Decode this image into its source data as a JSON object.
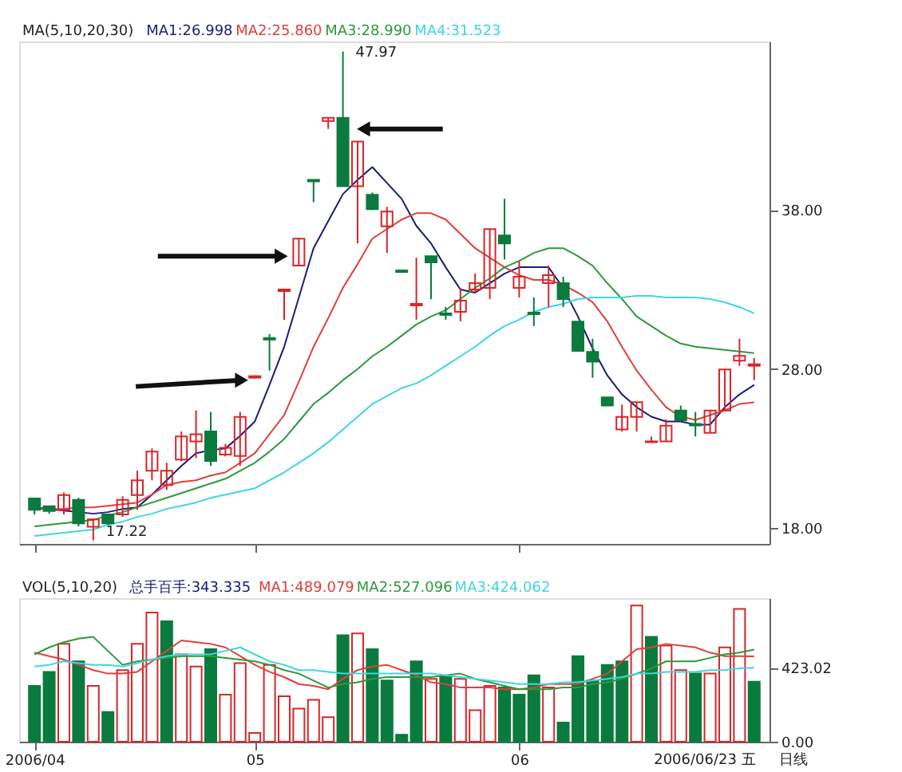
{
  "chart_data": [
    {
      "type": "candlestick",
      "legend": "top left",
      "tick_labels": "y",
      "annotations": [
        "MA(5,10,20,30)",
        "47.97",
        "17.22"
      ],
      "categories": [
        "2006/04",
        null,
        null,
        null,
        null,
        null,
        null,
        null,
        null,
        null,
        null,
        null,
        null,
        null,
        null,
        "05",
        null,
        null,
        null,
        null,
        null,
        null,
        null,
        null,
        null,
        null,
        null,
        null,
        null,
        null,
        null,
        null,
        null,
        "06",
        null,
        null,
        null,
        null,
        null,
        null,
        null,
        null,
        null,
        null,
        null,
        null,
        null,
        null,
        null,
        null
      ],
      "ohlc": [
        [
          19.86,
          19.9,
          18.85,
          19.15
        ],
        [
          19.37,
          19.4,
          18.9,
          19.07
        ],
        [
          19.15,
          20.23,
          18.85,
          20.07
        ],
        [
          19.77,
          19.9,
          18.1,
          18.29
        ],
        [
          18.08,
          18.6,
          17.22,
          18.54
        ],
        [
          18.85,
          18.9,
          18.2,
          18.29
        ],
        [
          18.85,
          20.0,
          18.7,
          19.77
        ],
        [
          20.07,
          21.6,
          19.15,
          21.0
        ],
        [
          21.6,
          23.0,
          21.0,
          22.8
        ],
        [
          20.7,
          22.1,
          20.4,
          21.6
        ],
        [
          22.3,
          24.07,
          22.2,
          23.76
        ],
        [
          23.45,
          25.4,
          22.4,
          23.9
        ],
        [
          24.07,
          25.3,
          21.9,
          22.22
        ],
        [
          22.62,
          23.3,
          22.5,
          23.05
        ],
        [
          22.53,
          25.3,
          21.9,
          24.99
        ],
        [
          27.45,
          27.6,
          27.4,
          27.55
        ],
        [
          29.95,
          30.2,
          27.9,
          29.85
        ],
        [
          32.9,
          33.0,
          31.1,
          33.0
        ],
        [
          34.5,
          36.2,
          34.5,
          36.2
        ],
        [
          39.9,
          39.9,
          38.5,
          39.8
        ],
        [
          43.6,
          43.8,
          43.1,
          43.8
        ],
        [
          43.8,
          47.97,
          39.5,
          39.5
        ],
        [
          39.5,
          42.3,
          35.9,
          42.3
        ],
        [
          38.96,
          39.1,
          38.0,
          38.05
        ],
        [
          36.97,
          38.2,
          35.3,
          37.9
        ],
        [
          34.2,
          34.2,
          34.1,
          34.1
        ],
        [
          32.0,
          35.0,
          31.1,
          32.1
        ],
        [
          35.1,
          35.1,
          32.4,
          34.7
        ],
        [
          31.5,
          31.9,
          31.1,
          31.4
        ],
        [
          31.6,
          33.1,
          31.0,
          32.3
        ],
        [
          33.0,
          34.0,
          32.8,
          33.4
        ],
        [
          33.1,
          36.8,
          32.4,
          36.8
        ],
        [
          36.4,
          38.7,
          34.9,
          35.9
        ],
        [
          33.1,
          34.8,
          32.5,
          33.8
        ],
        [
          31.55,
          32.5,
          30.7,
          31.45
        ],
        [
          33.4,
          34.5,
          31.9,
          33.9
        ],
        [
          33.4,
          33.8,
          31.9,
          32.4
        ],
        [
          30.98,
          30.98,
          29.14,
          29.14
        ],
        [
          29.08,
          29.9,
          27.45,
          28.46
        ],
        [
          26.22,
          26.22,
          25.7,
          25.7
        ],
        [
          24.2,
          25.76,
          24.07,
          24.99
        ],
        [
          24.99,
          25.91,
          24.07,
          25.91
        ],
        [
          23.4,
          23.76,
          23.4,
          23.45
        ],
        [
          23.45,
          24.84,
          23.45,
          24.44
        ],
        [
          25.39,
          25.7,
          24.77,
          24.77
        ],
        [
          24.55,
          25.3,
          23.76,
          24.45
        ],
        [
          23.98,
          25.39,
          23.98,
          25.39
        ],
        [
          25.39,
          27.97,
          25.39,
          27.97
        ],
        [
          28.52,
          29.9,
          28.2,
          28.83
        ],
        [
          28.2,
          28.7,
          27.3,
          28.3
        ]
      ],
      "colors": [
        "#0b7a3e",
        "#0b7a3e",
        "#d8262b",
        "#0b7a3e",
        "#d8262b",
        "#0b7a3e",
        "#d8262b",
        "#d8262b",
        "#d8262b",
        "#d8262b",
        "#d8262b",
        "#d8262b",
        "#0b7a3e",
        "#d8262b",
        "#d8262b",
        "#d8262b",
        "#0b7a3e",
        "#d8262b",
        "#d8262b",
        "#0b7a3e",
        "#d8262b",
        "#0b7a3e",
        "#d8262b",
        "#0b7a3e",
        "#d8262b",
        "#0b7a3e",
        "#d8262b",
        "#0b7a3e",
        "#0b7a3e",
        "#d8262b",
        "#d8262b",
        "#d8262b",
        "#0b7a3e",
        "#d8262b",
        "#0b7a3e",
        "#d8262b",
        "#0b7a3e",
        "#0b7a3e",
        "#0b7a3e",
        "#0b7a3e",
        "#d8262b",
        "#d8262b",
        "#d8262b",
        "#d8262b",
        "#0b7a3e",
        "#0b7a3e",
        "#d8262b",
        "#d8262b",
        "#d8262b",
        "#d8262b"
      ],
      "series": [
        {
          "name": "MA1:26.998",
          "type": "line",
          "color": "#1c1c78",
          "values": [
            19.3,
            19.2,
            19.1,
            19.0,
            18.9,
            19.0,
            19.2,
            19.3,
            20.1,
            21.0,
            21.9,
            22.7,
            22.9,
            23.0,
            23.8,
            24.7,
            27.0,
            29.4,
            32.5,
            35.6,
            37.3,
            39.0,
            39.9,
            40.7,
            39.7,
            38.7,
            37.0,
            35.9,
            34.4,
            33.0,
            32.8,
            33.4,
            34.0,
            34.4,
            34.4,
            34.4,
            33.1,
            31.3,
            29.3,
            27.6,
            26.4,
            25.6,
            25.0,
            24.7,
            24.7,
            24.5,
            24.5,
            25.6,
            26.4,
            27.0
          ]
        },
        {
          "name": "MA2:25.860",
          "type": "line",
          "color": "#e0403c",
          "values": [
            19.2,
            19.2,
            19.2,
            19.3,
            19.3,
            19.4,
            19.5,
            19.6,
            20.1,
            20.7,
            20.9,
            21.0,
            21.3,
            21.5,
            22.1,
            22.7,
            23.9,
            25.1,
            27.2,
            29.4,
            31.2,
            33.1,
            34.6,
            36.2,
            36.8,
            37.4,
            37.8,
            37.8,
            37.4,
            36.5,
            35.6,
            35.0,
            34.4,
            33.9,
            33.6,
            33.6,
            33.3,
            32.8,
            32.2,
            31.0,
            29.4,
            27.9,
            26.7,
            25.6,
            25.0,
            24.8,
            25.1,
            25.4,
            25.8,
            25.9
          ]
        },
        {
          "name": "MA3:28.990",
          "type": "line",
          "color": "#2c9a3c",
          "values": [
            18.1,
            18.2,
            18.3,
            18.4,
            18.5,
            18.8,
            19.0,
            19.3,
            19.6,
            19.9,
            20.2,
            20.5,
            20.8,
            21.1,
            21.6,
            22.1,
            22.8,
            23.6,
            24.7,
            25.8,
            26.5,
            27.3,
            28.0,
            28.8,
            29.4,
            30.1,
            30.8,
            31.3,
            31.7,
            32.4,
            33.1,
            33.7,
            34.4,
            34.8,
            35.3,
            35.6,
            35.6,
            35.1,
            34.5,
            33.4,
            32.4,
            31.3,
            30.7,
            30.1,
            29.6,
            29.4,
            29.3,
            29.2,
            29.1,
            29.0
          ]
        },
        {
          "name": "MA4:31.523",
          "type": "line",
          "color": "#3fd6e0",
          "values": [
            17.5,
            17.6,
            17.7,
            17.8,
            17.9,
            18.2,
            18.4,
            18.7,
            18.9,
            19.2,
            19.4,
            19.6,
            19.9,
            20.1,
            20.3,
            20.5,
            21.0,
            21.5,
            22.1,
            22.7,
            23.4,
            24.2,
            25.0,
            25.8,
            26.3,
            26.8,
            27.1,
            27.6,
            28.2,
            28.8,
            29.4,
            30.1,
            30.7,
            31.1,
            31.6,
            31.9,
            32.1,
            32.4,
            32.5,
            32.5,
            32.5,
            32.6,
            32.6,
            32.5,
            32.5,
            32.5,
            32.4,
            32.2,
            31.9,
            31.5
          ]
        }
      ],
      "ylim": [
        17.0,
        48.6
      ],
      "yticks": [
        {
          "value": 18,
          "label": "18.00"
        },
        {
          "value": 28,
          "label": "28.00"
        },
        {
          "value": 38,
          "label": "38.00"
        }
      ]
    },
    {
      "type": "bar",
      "legend": "top left",
      "annotations": [
        "VOL(5,10,20)",
        "总手百手:343.335",
        "2006/06/23 五",
        "日线"
      ],
      "categories": [
        "2006/04",
        null,
        null,
        null,
        null,
        null,
        null,
        null,
        null,
        null,
        null,
        null,
        null,
        null,
        null,
        "05",
        null,
        null,
        null,
        null,
        null,
        null,
        null,
        null,
        null,
        null,
        null,
        null,
        null,
        null,
        null,
        null,
        null,
        "06",
        null,
        null,
        null,
        null,
        null,
        null,
        null,
        null,
        null,
        null,
        null,
        null,
        null,
        null,
        null,
        null
      ],
      "values": [
        320,
        400,
        560,
        460,
        320,
        170,
        410,
        560,
        740,
        690,
        500,
        430,
        530,
        270,
        450,
        50,
        440,
        260,
        190,
        240,
        140,
        610,
        620,
        530,
        350,
        40,
        460,
        360,
        370,
        360,
        180,
        320,
        310,
        270,
        380,
        310,
        110,
        490,
        350,
        440,
        460,
        780,
        600,
        550,
        410,
        390,
        390,
        540,
        760,
        343.335
      ],
      "colors": [
        "#0b7a3e",
        "#0b7a3e",
        "#d8262b",
        "#0b7a3e",
        "#d8262b",
        "#0b7a3e",
        "#d8262b",
        "#d8262b",
        "#d8262b",
        "#0b7a3e",
        "#d8262b",
        "#d8262b",
        "#0b7a3e",
        "#d8262b",
        "#d8262b",
        "#d8262b",
        "#d8262b",
        "#d8262b",
        "#d8262b",
        "#d8262b",
        "#d8262b",
        "#0b7a3e",
        "#d8262b",
        "#0b7a3e",
        "#0b7a3e",
        "#0b7a3e",
        "#0b7a3e",
        "#d8262b",
        "#0b7a3e",
        "#d8262b",
        "#d8262b",
        "#d8262b",
        "#0b7a3e",
        "#0b7a3e",
        "#0b7a3e",
        "#d8262b",
        "#0b7a3e",
        "#0b7a3e",
        "#0b7a3e",
        "#0b7a3e",
        "#0b7a3e",
        "#d8262b",
        "#0b7a3e",
        "#d8262b",
        "#d8262b",
        "#0b7a3e",
        "#d8262b",
        "#d8262b",
        "#d8262b",
        "#0b7a3e"
      ],
      "series": [
        {
          "name": "MA1:489.079",
          "type": "line",
          "color": "#e0403c",
          "values": [
            510,
            490,
            470,
            440,
            410,
            390,
            390,
            400,
            460,
            520,
            580,
            570,
            560,
            540,
            490,
            440,
            400,
            370,
            330,
            320,
            300,
            360,
            410,
            430,
            440,
            410,
            380,
            340,
            330,
            310,
            310,
            310,
            300,
            300,
            310,
            330,
            330,
            330,
            360,
            390,
            460,
            530,
            540,
            560,
            550,
            540,
            510,
            490,
            490,
            489.079
          ]
        },
        {
          "name": "MA2:527.096",
          "type": "line",
          "color": "#2c9a3c",
          "values": [
            500,
            540,
            570,
            590,
            600,
            520,
            440,
            460,
            470,
            480,
            490,
            490,
            490,
            480,
            470,
            460,
            440,
            410,
            390,
            350,
            310,
            330,
            340,
            360,
            370,
            370,
            370,
            370,
            380,
            390,
            360,
            340,
            320,
            300,
            300,
            300,
            310,
            310,
            330,
            340,
            360,
            390,
            420,
            460,
            460,
            460,
            480,
            500,
            510,
            527.096
          ]
        },
        {
          "name": "MA3:424.062",
          "type": "line",
          "color": "#3fd6e0",
          "values": [
            430,
            440,
            460,
            450,
            440,
            440,
            430,
            450,
            470,
            490,
            500,
            500,
            500,
            520,
            540,
            500,
            460,
            440,
            410,
            410,
            400,
            390,
            390,
            390,
            390,
            390,
            390,
            390,
            380,
            370,
            360,
            350,
            340,
            330,
            330,
            330,
            340,
            340,
            350,
            360,
            370,
            390,
            390,
            400,
            400,
            400,
            410,
            410,
            420,
            424.062
          ]
        }
      ],
      "ylim": [
        0,
        822
      ],
      "yticks": [
        {
          "value": 0,
          "label": "0.00"
        },
        {
          "value": 423.02,
          "label": "423.02"
        }
      ]
    }
  ]
}
